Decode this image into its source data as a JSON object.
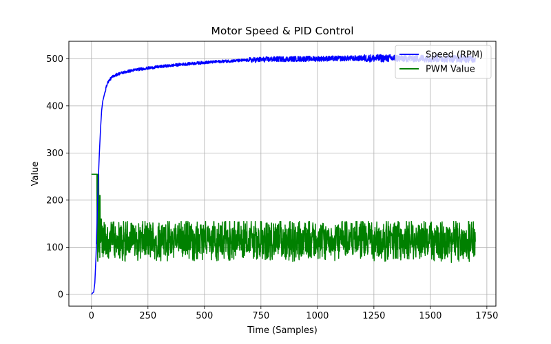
{
  "chart_data": {
    "type": "line",
    "title": "Motor Speed & PID Control",
    "xlabel": "Time (Samples)",
    "ylabel": "Value",
    "xlim": [
      -100,
      1790
    ],
    "ylim": [
      -25,
      537
    ],
    "xticks": [
      0,
      250,
      500,
      750,
      1000,
      1250,
      1500,
      1750
    ],
    "yticks": [
      0,
      100,
      200,
      300,
      400,
      500
    ],
    "grid": true,
    "legend_position": "top-right",
    "num_points": 1700,
    "series": [
      {
        "name": "Speed (RPM)",
        "color": "#0000ff",
        "anchors": [
          [
            0,
            0
          ],
          [
            5,
            3
          ],
          [
            10,
            5
          ],
          [
            15,
            25
          ],
          [
            20,
            80
          ],
          [
            25,
            160
          ],
          [
            30,
            240
          ],
          [
            35,
            300
          ],
          [
            40,
            350
          ],
          [
            45,
            390
          ],
          [
            50,
            410
          ],
          [
            60,
            430
          ],
          [
            70,
            448
          ],
          [
            80,
            455
          ],
          [
            90,
            460
          ],
          [
            100,
            464
          ],
          [
            120,
            468
          ],
          [
            150,
            472
          ],
          [
            200,
            477
          ],
          [
            250,
            480
          ],
          [
            300,
            483
          ],
          [
            400,
            488
          ],
          [
            500,
            492
          ],
          [
            600,
            495
          ],
          [
            700,
            497
          ],
          [
            800,
            499
          ],
          [
            1000,
            500
          ],
          [
            1200,
            501
          ],
          [
            1400,
            501
          ],
          [
            1700,
            500
          ]
        ],
        "noise_amplitude_late": 8
      },
      {
        "name": "PWM Value",
        "color": "#008000",
        "initial_value": 255,
        "initial_end": 25,
        "dip_at": 25,
        "dip_value": 68,
        "bursts": [
          [
            25,
            255
          ],
          [
            27,
            70
          ],
          [
            30,
            255
          ],
          [
            33,
            90
          ],
          [
            36,
            210
          ],
          [
            40,
            160
          ],
          [
            45,
            145
          ],
          [
            50,
            130
          ]
        ],
        "steady_mean": 115,
        "steady_amplitude_low": 55,
        "steady_amplitude_high": 155
      }
    ]
  }
}
